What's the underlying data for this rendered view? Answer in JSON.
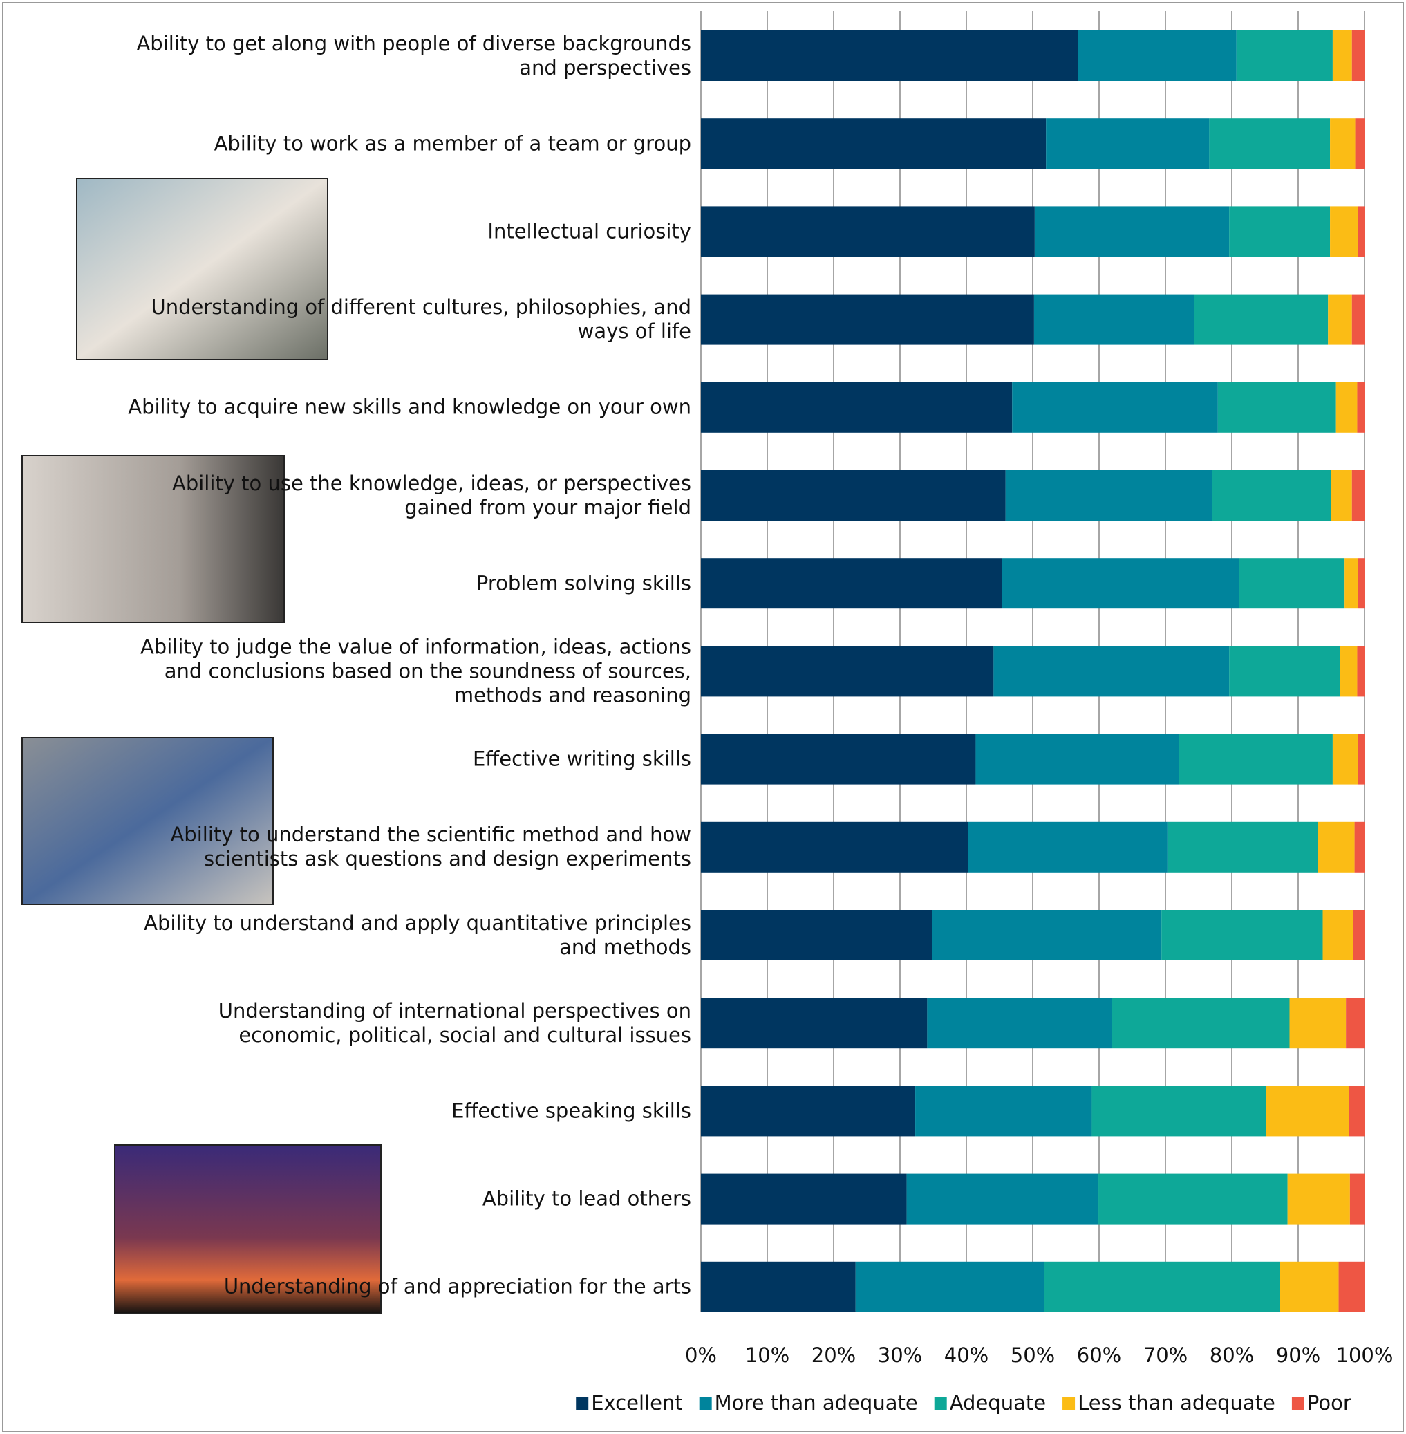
{
  "chart_data": {
    "type": "stacked_barh",
    "categories": [
      "Ability to get along with people of diverse backgrounds and perspectives",
      "Ability to work as a member of a team or group",
      "Intellectual curiosity",
      "Understanding of different cultures, philosophies, and ways of life",
      "Ability to acquire new skills and knowledge on your own",
      "Ability to use the knowledge, ideas, or perspectives gained from your major field",
      "Problem solving skills",
      "Ability to judge the value of information, ideas, actions and conclusions based on the soundness of sources, methods and reasoning",
      "Effective writing skills",
      "Ability to understand the scientific method and how scientists ask questions and design experiments",
      "Ability to understand and apply quantitative principles and methods",
      "Understanding of international perspectives on economic, political, social and cultural issues",
      "Effective speaking skills",
      "Ability to lead others",
      "Understanding of and appreciation for the arts"
    ],
    "series": [
      {
        "name": "Excellent",
        "color": "#003660",
        "values": [
          56.8,
          52.0,
          50.3,
          50.2,
          46.9,
          45.9,
          45.4,
          44.1,
          41.4,
          40.3,
          34.8,
          34.1,
          32.3,
          31.0,
          23.3
        ]
      },
      {
        "name": "More than adequate",
        "color": "#00849c",
        "values": [
          23.9,
          24.6,
          29.3,
          24.1,
          31.0,
          31.1,
          35.7,
          35.5,
          30.6,
          30.0,
          34.6,
          27.8,
          26.6,
          28.9,
          28.4
        ]
      },
      {
        "name": "Adequate",
        "color": "#0ea898",
        "values": [
          14.5,
          18.2,
          15.2,
          20.2,
          17.8,
          18.0,
          15.9,
          16.7,
          23.2,
          22.7,
          24.3,
          26.8,
          26.3,
          28.5,
          35.5
        ]
      },
      {
        "name": "Less than adequate",
        "color": "#fbbc15",
        "values": [
          2.9,
          3.8,
          4.2,
          3.6,
          3.2,
          3.1,
          2.0,
          2.6,
          3.8,
          5.5,
          4.6,
          8.5,
          12.5,
          9.4,
          8.9
        ]
      },
      {
        "name": "Poor",
        "color": "#ee5644",
        "values": [
          1.9,
          1.4,
          1.0,
          1.9,
          1.1,
          1.9,
          1.0,
          1.1,
          1.0,
          1.5,
          1.7,
          2.8,
          2.3,
          2.2,
          3.9
        ]
      }
    ],
    "xlim": [
      0,
      100
    ],
    "xticks": [
      {
        "value": 0,
        "label": "0%"
      },
      {
        "value": 10,
        "label": "10%"
      },
      {
        "value": 20,
        "label": "20%"
      },
      {
        "value": 30,
        "label": "30%"
      },
      {
        "value": 40,
        "label": "40%"
      },
      {
        "value": 50,
        "label": "50%"
      },
      {
        "value": 60,
        "label": "60%"
      },
      {
        "value": 70,
        "label": "70%"
      },
      {
        "value": 80,
        "label": "80%"
      },
      {
        "value": 90,
        "label": "90%"
      },
      {
        "value": 100,
        "label": "100%"
      }
    ],
    "grid": true,
    "legend": "bottom"
  }
}
